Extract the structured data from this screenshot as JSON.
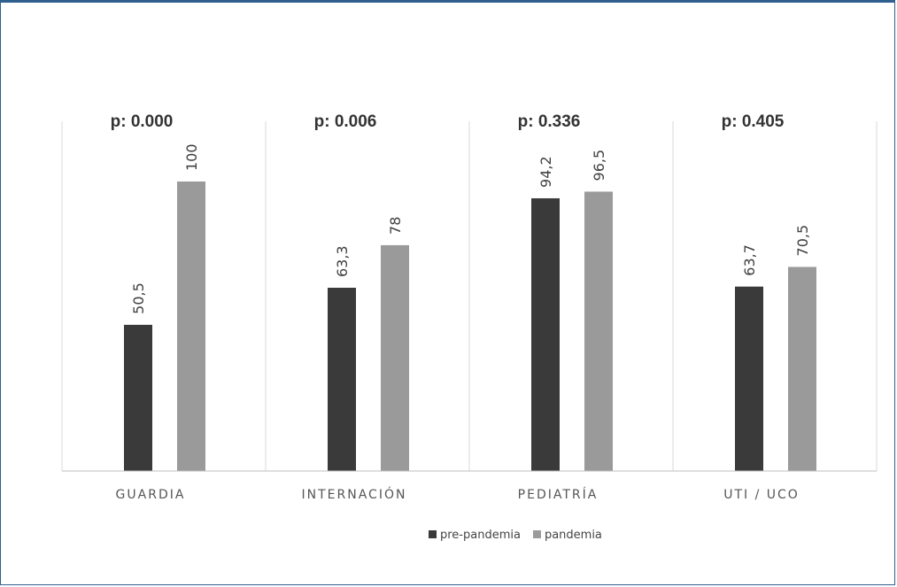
{
  "chart_data": {
    "type": "bar",
    "categories": [
      "GUARDIA",
      "INTERNACIÓN",
      "PEDIATRÍA",
      "UTI / UCO"
    ],
    "annotations": [
      "p: 0.000",
      "p: 0.006",
      "p: 0.336",
      "p: 0.405"
    ],
    "series": [
      {
        "name": "pre-pandemia",
        "values": [
          50.5,
          63.3,
          94.2,
          63.7
        ],
        "labels": [
          "50,5",
          "63,3",
          "94,2",
          "63,7"
        ],
        "color": "#3a3a3a"
      },
      {
        "name": "pandemia",
        "values": [
          100,
          78,
          96.5,
          70.5
        ],
        "labels": [
          "100",
          "78",
          "96,5",
          "70,5"
        ],
        "color": "#9a9a9a"
      }
    ],
    "ylim": [
      0,
      100
    ],
    "grid": false,
    "legend": "bottom-center",
    "title": "",
    "xlabel": "",
    "ylabel": ""
  }
}
